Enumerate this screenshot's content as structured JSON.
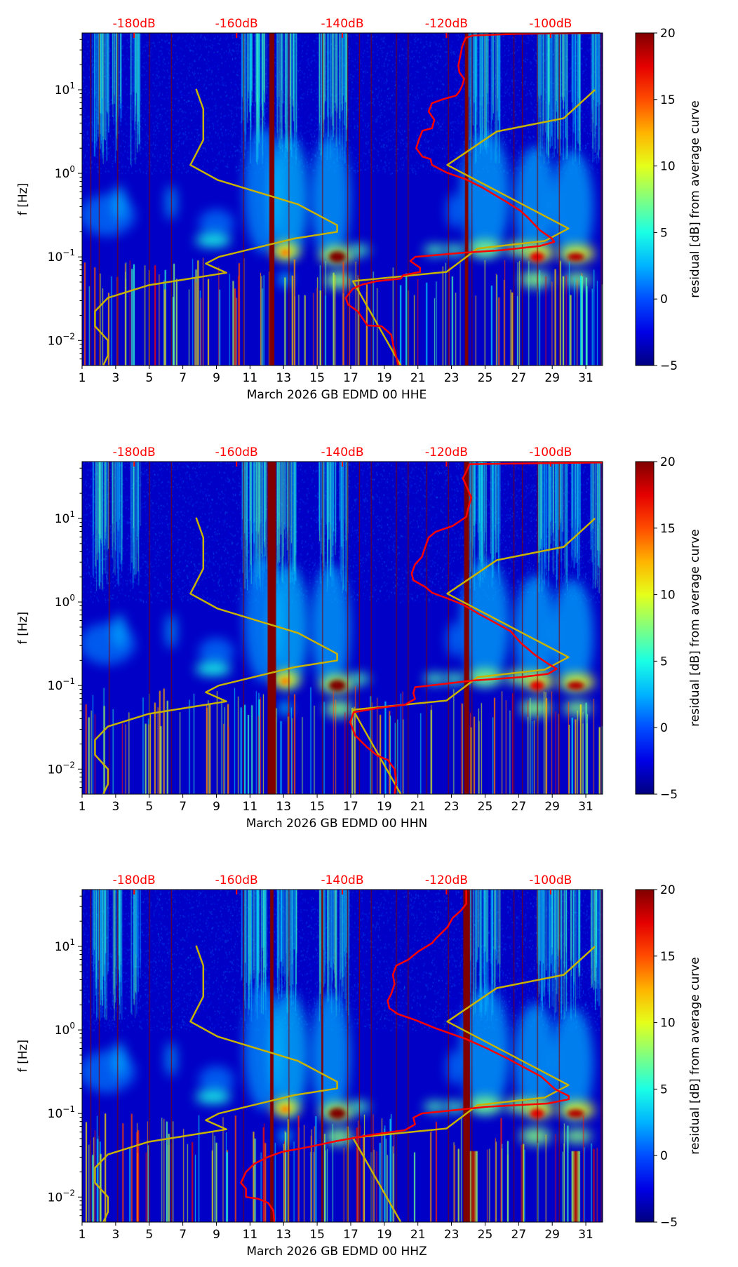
{
  "shared": {
    "ylabel": "f [Hz]",
    "x_ticks": [
      1,
      3,
      5,
      7,
      9,
      11,
      13,
      15,
      17,
      19,
      21,
      23,
      25,
      27,
      29,
      31
    ],
    "xlim": [
      1,
      32
    ],
    "yscale": "log",
    "ylim_hz": [
      0.005,
      48
    ],
    "y_ticks": [
      {
        "value": 0.01,
        "base": "10",
        "exp": "−2"
      },
      {
        "value": 0.1,
        "base": "10",
        "exp": "−1"
      },
      {
        "value": 1,
        "base": "10",
        "exp": "0"
      },
      {
        "value": 10,
        "base": "10",
        "exp": "1"
      }
    ],
    "top_axis": {
      "labels": [
        "-180dB",
        "-160dB",
        "-140dB",
        "-120dB",
        "-100dB"
      ],
      "dB_values": [
        -180,
        -160,
        -140,
        -120,
        -100
      ],
      "day_positions": [
        4.1,
        10.2,
        16.5,
        22.7,
        28.9
      ],
      "color": "#ff0000"
    },
    "colorbar": {
      "label": "residual [dB] from average curve",
      "ticks": [
        "20",
        "15",
        "10",
        "5",
        "0",
        "−5"
      ],
      "tick_values": [
        20,
        15,
        10,
        5,
        0,
        -5
      ],
      "range": [
        -5,
        20
      ],
      "colormap": "jet"
    },
    "model_curves": [
      {
        "name": "low-noise-model",
        "color": "#c8b400",
        "x_day": [
          7.79,
          8.22,
          8.22,
          7.45,
          9.08,
          13.85,
          16.19,
          16.19,
          13.65,
          9.14,
          8.37,
          9.59,
          4.94,
          2.54,
          1.77,
          1.77,
          2.54,
          2.54,
          2.26
        ],
        "log10_f": [
          1.01,
          0.77,
          0.4,
          0.1,
          -0.08,
          -0.37,
          -0.62,
          -0.7,
          -0.78,
          -1.0,
          -1.08,
          -1.19,
          -1.34,
          -1.49,
          -1.65,
          -1.83,
          -2.0,
          -2.18,
          -2.3
        ]
      },
      {
        "name": "high-noise-model",
        "color": "#c8b400",
        "x_day": [
          31.55,
          29.69,
          25.69,
          22.75,
          29.97,
          28.55,
          24.55,
          22.7,
          17.13,
          19.98
        ],
        "log10_f": [
          1.0,
          0.66,
          0.5,
          0.1,
          -0.66,
          -0.81,
          -0.9,
          -1.18,
          -1.29,
          -2.3
        ]
      }
    ]
  },
  "chart_data": [
    {
      "type": "heatmap",
      "xlabel": "March 2026 GB EDMD 00 HHE",
      "ylabel": "f [Hz]",
      "gaps": [
        1.5,
        2.0,
        3.1,
        5.0,
        6.3,
        10.6,
        13.3,
        15.3,
        16.8,
        17.5,
        18.2,
        19.7,
        20.4,
        22.8,
        24.2,
        26.7,
        27.2,
        28.1,
        29.4,
        31.9
      ],
      "thick_gaps": [
        {
          "day": 12.3,
          "width_days": 0.3
        },
        {
          "day": 23.9,
          "width_days": 0.2
        }
      ],
      "average_curve": {
        "color": "#ff0000",
        "x_day": [
          31.83,
          26.83,
          24.27,
          23.84,
          23.64,
          23.41,
          23.47,
          23.75,
          23.64,
          23.47,
          23.27,
          22.55,
          21.84,
          21.64,
          21.98,
          21.84,
          21.27,
          21.07,
          20.9,
          21.27,
          21.75,
          21.84,
          22.7,
          23.84,
          24.84,
          26.26,
          27.12,
          27.55,
          28.26,
          28.98,
          29.12,
          28.26,
          25.98,
          23.7,
          20.84,
          20.55,
          21.13,
          21.13,
          20.13,
          19.98,
          18.56,
          17.7,
          17.13,
          16.7,
          16.84,
          17.41,
          17.99,
          18.84,
          19.41,
          19.56,
          19.84
        ],
        "log10_f": [
          1.68,
          1.67,
          1.65,
          1.62,
          1.52,
          1.29,
          1.21,
          1.13,
          1.05,
          0.98,
          0.93,
          0.89,
          0.84,
          0.74,
          0.64,
          0.54,
          0.51,
          0.41,
          0.3,
          0.2,
          0.17,
          0.1,
          0.01,
          -0.07,
          -0.17,
          -0.34,
          -0.45,
          -0.53,
          -0.68,
          -0.78,
          -0.82,
          -0.87,
          -0.92,
          -0.95,
          -1.0,
          -1.05,
          -1.13,
          -1.18,
          -1.22,
          -1.26,
          -1.29,
          -1.33,
          -1.38,
          -1.49,
          -1.57,
          -1.65,
          -1.82,
          -1.83,
          -1.93,
          -2.08,
          -2.3
        ]
      }
    },
    {
      "type": "heatmap",
      "xlabel": "March 2026 GB EDMD 00 HHN",
      "ylabel": "f [Hz]",
      "gaps": [
        2.6,
        5.0,
        6.3,
        10.6,
        13.3,
        15.3,
        16.8,
        17.5,
        18.2,
        19.7,
        20.4,
        21.5,
        22.8,
        24.2,
        26.7,
        27.2,
        28.1,
        29.4,
        31.9
      ],
      "thick_gaps": [
        {
          "day": 12.3,
          "width_days": 0.5
        },
        {
          "day": 23.9,
          "width_days": 0.3
        }
      ],
      "average_curve": {
        "color": "#ff0000",
        "x_day": [
          32.0,
          24.08,
          23.88,
          23.68,
          23.88,
          24.18,
          23.98,
          23.88,
          23.07,
          22.05,
          21.64,
          21.44,
          21.24,
          20.83,
          20.63,
          20.73,
          21.44,
          21.85,
          22.66,
          23.68,
          24.69,
          25.71,
          26.52,
          27.13,
          27.95,
          28.76,
          29.27,
          28.76,
          27.13,
          24.29,
          20.83,
          20.73,
          20.83,
          20.22,
          18.59,
          17.17,
          16.97,
          17.27,
          17.98,
          18.59,
          19.2,
          19.61,
          19.71,
          19.61
        ],
        "log10_f": [
          1.67,
          1.65,
          1.56,
          1.48,
          1.39,
          1.25,
          1.11,
          1.02,
          0.91,
          0.84,
          0.77,
          0.66,
          0.54,
          0.45,
          0.34,
          0.26,
          0.18,
          0.11,
          0.05,
          -0.03,
          -0.15,
          -0.26,
          -0.35,
          -0.49,
          -0.63,
          -0.74,
          -0.8,
          -0.86,
          -0.9,
          -0.94,
          -1.02,
          -1.09,
          -1.16,
          -1.23,
          -1.27,
          -1.32,
          -1.44,
          -1.6,
          -1.74,
          -1.84,
          -1.89,
          -2.0,
          -2.14,
          -2.3
        ]
      }
    },
    {
      "type": "heatmap",
      "xlabel": "March 2026 GB EDMD 00 HHZ",
      "ylabel": "f [Hz]",
      "gaps": [
        1.5,
        2.0,
        3.1,
        5.0,
        6.3,
        10.6,
        13.3,
        15.3,
        16.8,
        17.5,
        18.2,
        19.7,
        20.4,
        22.8,
        24.2,
        26.7,
        27.2,
        28.1,
        29.4,
        31.9
      ],
      "thick_gaps": [
        {
          "day": 12.3,
          "width_days": 0.2
        },
        {
          "day": 23.9,
          "width_days": 0.4
        },
        {
          "day": 15.3,
          "width_days": 0.1
        }
      ],
      "average_curve": {
        "color": "#ff0000",
        "x_day": [
          23.88,
          23.88,
          23.57,
          23.07,
          22.76,
          22.05,
          21.85,
          21.03,
          20.42,
          19.71,
          19.51,
          19.61,
          19.41,
          19.2,
          19.3,
          19.81,
          20.83,
          22.05,
          23.88,
          25.1,
          26.32,
          27.34,
          28.36,
          29.17,
          29.98,
          29.98,
          28.76,
          25.1,
          21.24,
          20.73,
          20.83,
          20.22,
          18.39,
          16.15,
          14.52,
          12.9,
          12.08,
          11.27,
          10.76,
          10.46,
          10.76,
          10.76,
          11.47,
          12.08,
          12.39,
          12.45
        ],
        "log10_f": [
          1.68,
          1.51,
          1.43,
          1.34,
          1.23,
          1.09,
          1.04,
          0.94,
          0.84,
          0.77,
          0.66,
          0.55,
          0.43,
          0.35,
          0.26,
          0.19,
          0.12,
          0.02,
          -0.11,
          -0.22,
          -0.34,
          -0.45,
          -0.56,
          -0.71,
          -0.79,
          -0.83,
          -0.88,
          -0.92,
          -1.0,
          -1.05,
          -1.13,
          -1.2,
          -1.25,
          -1.33,
          -1.4,
          -1.46,
          -1.52,
          -1.6,
          -1.7,
          -1.83,
          -1.9,
          -2.0,
          -2.02,
          -2.07,
          -2.16,
          -2.3
        ]
      }
    }
  ]
}
